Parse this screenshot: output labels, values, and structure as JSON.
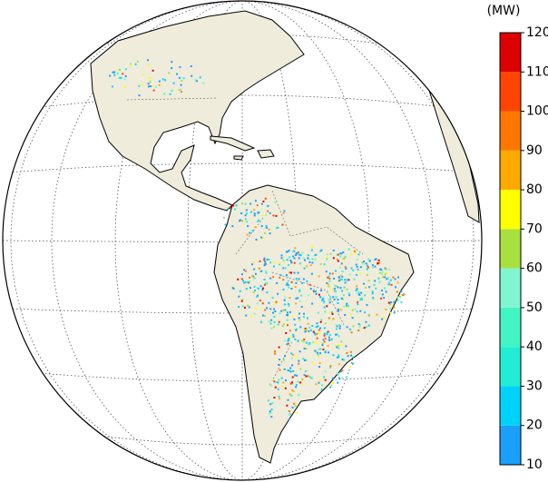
{
  "colorbar": {
    "unit": "(MW)",
    "ticks": [
      10,
      20,
      30,
      40,
      50,
      60,
      70,
      80,
      90,
      100,
      110,
      120
    ],
    "colors": [
      "#1a9fff",
      "#00d2ff",
      "#22ecd4",
      "#44f5c4",
      "#7ff5d0",
      "#a8e040",
      "#ffff00",
      "#ffaa00",
      "#ff7700",
      "#ff4400",
      "#dd0000"
    ]
  }
}
